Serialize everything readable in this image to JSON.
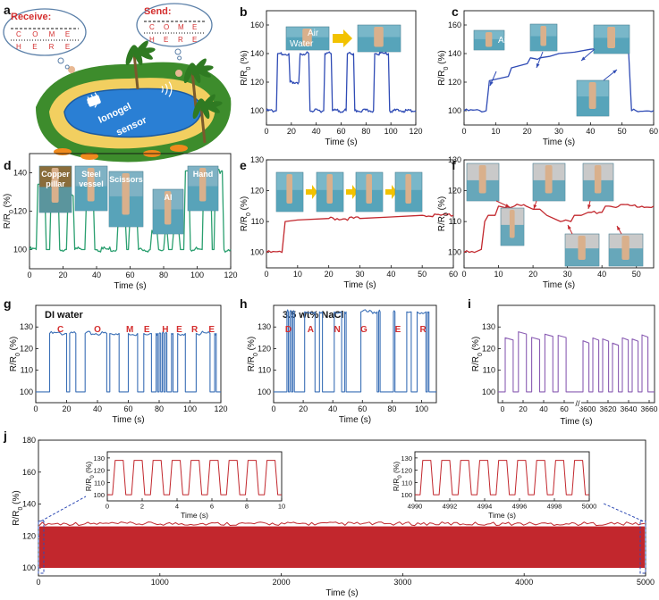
{
  "figure_labels": [
    "a",
    "b",
    "c",
    "d",
    "e",
    "f",
    "g",
    "h",
    "i",
    "j"
  ],
  "illustration": {
    "receive_label": "Receive:",
    "send_label": "Send:",
    "receive_row1": [
      "C",
      "O",
      "M",
      "E"
    ],
    "receive_row2": [
      "H",
      "E",
      "R",
      "E"
    ],
    "send_row1": [
      "C",
      "O",
      "M",
      "E"
    ],
    "send_row2": [
      "H",
      "E",
      "R",
      "E"
    ],
    "sensor_text": [
      "Ionogel",
      "sensor"
    ]
  },
  "colors": {
    "blue": "#2f4bb5",
    "green": "#2a9f6f",
    "red": "#c2272d",
    "mid_blue": "#3a6fb6",
    "purple": "#8a5db3",
    "annotation_red": "#d42f2f",
    "arrow_yellow": "#f2c200",
    "pool": "#2a7fd4",
    "sand": "#f2cf60",
    "grass": "#3d8c2c"
  },
  "chart_data": [
    {
      "id": "b",
      "type": "line",
      "color_key": "blue",
      "xlabel": "Time (s)",
      "ylabel": "R/R0 (%)",
      "xlim": [
        0,
        120
      ],
      "ylim": [
        90,
        170
      ],
      "xticks": [
        0,
        20,
        40,
        60,
        80,
        100,
        120
      ],
      "yticks": [
        100,
        120,
        140,
        160
      ],
      "x": [
        0,
        8,
        9,
        18,
        19,
        26,
        27,
        34,
        35,
        46,
        47,
        52,
        53,
        64,
        65,
        70,
        71,
        86,
        87,
        98,
        99,
        120
      ],
      "y": [
        100,
        100,
        140,
        140,
        120,
        120,
        140,
        140,
        100,
        100,
        140,
        140,
        100,
        100,
        140,
        140,
        100,
        100,
        140,
        140,
        100,
        100
      ],
      "annotations": [
        "Air",
        "Water"
      ]
    },
    {
      "id": "c",
      "type": "line",
      "color_key": "blue",
      "xlabel": "Time (s)",
      "ylabel": "R/R0 (%)",
      "xlim": [
        0,
        60
      ],
      "ylim": [
        90,
        170
      ],
      "xticks": [
        0,
        10,
        20,
        30,
        40,
        50,
        60
      ],
      "yticks": [
        100,
        120,
        140,
        160
      ],
      "x": [
        0,
        7,
        8,
        14,
        15,
        20,
        21,
        24,
        27,
        30,
        35,
        40,
        44,
        47,
        52,
        53,
        60
      ],
      "y": [
        100,
        100,
        121,
        124,
        130,
        133,
        137,
        137,
        138,
        140,
        141,
        143,
        144,
        145,
        145,
        100,
        100
      ],
      "annotations": [
        "Air",
        "Water"
      ]
    },
    {
      "id": "d",
      "type": "line",
      "color_key": "green",
      "xlabel": "Time (s)",
      "ylabel": "R/R0 (%)",
      "xlim": [
        0,
        120
      ],
      "ylim": [
        90,
        150
      ],
      "xticks": [
        0,
        20,
        40,
        60,
        80,
        100,
        120
      ],
      "yticks": [
        100,
        120,
        140
      ],
      "x": [
        0,
        4,
        5,
        9,
        10,
        12,
        13,
        17,
        18,
        22,
        23,
        26,
        27,
        31,
        32,
        33,
        34,
        38,
        39,
        52,
        53,
        57,
        58,
        59,
        60,
        64,
        65,
        72,
        73,
        76,
        77,
        80,
        81,
        82,
        83,
        85,
        86,
        89,
        90,
        92,
        93,
        95,
        96,
        103,
        104,
        108,
        109,
        110,
        111,
        115,
        116,
        120
      ],
      "y": [
        100,
        100,
        134,
        134,
        100,
        100,
        134,
        134,
        100,
        100,
        128,
        128,
        100,
        100,
        100,
        100,
        128,
        128,
        100,
        100,
        118,
        118,
        100,
        100,
        118,
        118,
        100,
        100,
        110,
        110,
        100,
        100,
        110,
        110,
        100,
        100,
        110,
        110,
        100,
        100,
        141,
        141,
        100,
        100,
        141,
        141,
        100,
        100,
        141,
        141,
        100,
        100
      ],
      "annotations": [
        "Copper pillar",
        "Steel vessel",
        "Scissors",
        "Al",
        "Hand"
      ]
    },
    {
      "id": "e",
      "type": "line",
      "color_key": "red",
      "xlabel": "Time (s)",
      "ylabel": "R/R0 (%)",
      "xlim": [
        0,
        60
      ],
      "ylim": [
        95,
        130
      ],
      "xticks": [
        0,
        10,
        20,
        30,
        40,
        50,
        60
      ],
      "yticks": [
        100,
        110,
        120,
        130
      ],
      "x": [
        0,
        5,
        6,
        10,
        20,
        30,
        40,
        50,
        60
      ],
      "y": [
        100,
        100,
        110,
        110.5,
        111,
        111,
        111.5,
        112,
        112
      ]
    },
    {
      "id": "f",
      "type": "line",
      "color_key": "red",
      "xlabel": "Time (s)",
      "ylabel": "R/R0 (%)",
      "xlim": [
        0,
        55
      ],
      "ylim": [
        95,
        130
      ],
      "xticks": [
        0,
        10,
        20,
        30,
        40,
        50
      ],
      "yticks": [
        100,
        110,
        120,
        130
      ],
      "x": [
        0,
        3,
        5,
        6,
        7,
        9,
        10,
        18,
        20,
        22,
        24,
        28,
        31,
        32,
        34,
        36,
        37,
        40,
        41,
        42,
        55
      ],
      "y": [
        100,
        100,
        101,
        110,
        112,
        112,
        115,
        115,
        114,
        114,
        112,
        110,
        110,
        112,
        112,
        113,
        113,
        113,
        115,
        115,
        115
      ]
    },
    {
      "id": "g",
      "type": "line",
      "color_key": "mid_blue",
      "title": "DI water",
      "xlabel": "Time (s)",
      "ylabel": "R/R0 (%)",
      "xlim": [
        0,
        120
      ],
      "ylim": [
        95,
        140
      ],
      "xticks": [
        0,
        20,
        40,
        60,
        80,
        100,
        120
      ],
      "yticks": [
        100,
        110,
        120,
        130
      ],
      "pulses": [
        [
          9,
          20
        ],
        [
          22,
          26
        ],
        [
          32,
          46
        ],
        [
          48,
          54
        ],
        [
          60,
          66
        ],
        [
          70,
          75
        ],
        [
          78,
          79
        ],
        [
          80,
          81
        ],
        [
          82,
          83
        ],
        [
          84,
          85
        ],
        [
          88,
          89
        ],
        [
          92,
          97
        ],
        [
          104,
          113
        ],
        [
          116,
          117
        ]
      ],
      "pulse_low": 100,
      "pulse_high": 127,
      "letters": [
        "C",
        "O",
        "M",
        "E",
        "H",
        "E",
        "R",
        "E"
      ]
    },
    {
      "id": "h",
      "type": "line",
      "color_key": "mid_blue",
      "title": "3.5 wt% NaCl",
      "xlabel": "Time (s)",
      "ylabel": "R/R0 (%)",
      "xlim": [
        0,
        110
      ],
      "ylim": [
        95,
        140
      ],
      "xticks": [
        0,
        20,
        40,
        60,
        80,
        100
      ],
      "yticks": [
        100,
        110,
        120,
        130
      ],
      "pulses": [
        [
          9,
          10
        ],
        [
          11,
          12
        ],
        [
          13,
          14
        ],
        [
          21,
          28
        ],
        [
          31,
          33
        ],
        [
          41,
          46
        ],
        [
          48,
          49
        ],
        [
          59,
          70
        ],
        [
          71,
          72
        ],
        [
          81,
          82
        ],
        [
          90,
          93
        ],
        [
          97,
          103
        ],
        [
          104,
          105
        ]
      ],
      "pulse_low": 100,
      "pulse_high": 137,
      "letters": [
        "D",
        "A",
        "N",
        "G",
        "E",
        "R"
      ]
    },
    {
      "id": "i",
      "type": "line",
      "color_key": "purple",
      "xlabel": "Time (s)",
      "ylabel": "R/R0 (%)",
      "ylim": [
        95,
        140
      ],
      "xtick_labels": [
        "0",
        "20",
        "40",
        "60",
        "3600",
        "3620",
        "3640",
        "3660"
      ],
      "yticks": [
        100,
        110,
        120,
        130
      ],
      "axis_break": "//",
      "pulse_low": 100,
      "pulse_high": 125
    },
    {
      "id": "j",
      "type": "area",
      "color_key": "red",
      "xlabel": "Time (s)",
      "ylabel": "R/R0 (%)",
      "xlim": [
        0,
        5000
      ],
      "ylim": [
        95,
        180
      ],
      "xticks": [
        0,
        1000,
        2000,
        3000,
        4000,
        5000
      ],
      "yticks": [
        100,
        120,
        140,
        160,
        180
      ],
      "band_low": 100,
      "band_high": 126,
      "insets": [
        {
          "xlabel": "Time (s)",
          "ylabel": "R/R0 (%)",
          "xlim": [
            0,
            10
          ],
          "ylim": [
            95,
            135
          ],
          "xticks": [
            0,
            2,
            4,
            6,
            8,
            10
          ],
          "xtick_labels": [
            "0",
            "2",
            "4",
            "6",
            "8",
            "10"
          ],
          "yticks": [
            100,
            110,
            120,
            130
          ]
        },
        {
          "xlabel": "Time (s)",
          "ylabel": "R/R0 (%)",
          "xlim": [
            4990,
            5000
          ],
          "ylim": [
            95,
            135
          ],
          "xticks": [
            4990,
            4992,
            4994,
            4996,
            4998,
            5000
          ],
          "xtick_labels": [
            "4990",
            "4992",
            "4994",
            "4996",
            "4998",
            "5000"
          ],
          "yticks": [
            100,
            110,
            120,
            130
          ]
        }
      ]
    }
  ]
}
